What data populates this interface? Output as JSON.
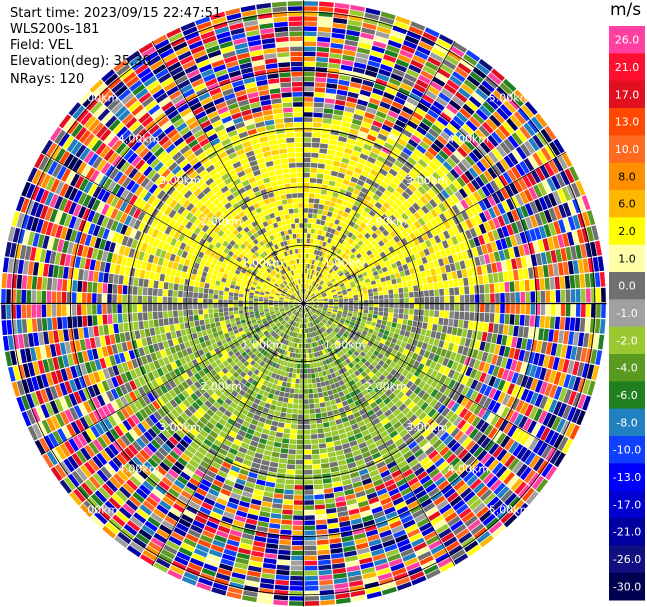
{
  "header": {
    "start_time": "Start time: 2023/09/15 22:47:51",
    "instrument": "WLS200s-181",
    "field": "Field: VEL",
    "elevation": "Elevation(deg): 35.30",
    "nrays": "NRays: 120"
  },
  "chart_data": {
    "type": "heatmap",
    "title": "",
    "projection": "polar PPI (plan position indicator)",
    "field": "VEL",
    "units": "m/s",
    "nrays": 120,
    "elevation_deg": 35.3,
    "range_rings_km": [
      1.0,
      2.0,
      3.0,
      4.0,
      5.0
    ],
    "max_range_km": 5.2,
    "ring_labels": [
      {
        "text": "1.00km",
        "ring": 1.0,
        "quadrants": [
          "NE",
          "SE",
          "SW",
          "NW"
        ]
      },
      {
        "text": "2.00km",
        "ring": 2.0,
        "quadrants": [
          "NE",
          "SE",
          "SW",
          "NW"
        ]
      },
      {
        "text": "3.00km",
        "ring": 3.0,
        "quadrants": [
          "NE",
          "SE",
          "SW",
          "NW"
        ]
      },
      {
        "text": "4.00km",
        "ring": 4.0,
        "quadrants": [
          "NE",
          "SE",
          "SW",
          "NW"
        ]
      },
      {
        "text": "5.00km",
        "ring": 5.0,
        "quadrants": [
          "NE",
          "SE",
          "SW",
          "NW"
        ]
      }
    ],
    "colorbar": {
      "label": "m/s",
      "ticks": [
        "26.0",
        "21.0",
        "17.0",
        "13.0",
        "10.0",
        "8.0",
        "6.0",
        "2.0",
        "1.0",
        "0.0",
        "-1.0",
        "-2.0",
        "-4.0",
        "-6.0",
        "-8.0",
        "-10.0",
        "-13.0",
        "-17.0",
        "-21.0",
        "-26.0",
        "-30.0"
      ],
      "colors": [
        "#ff40a0",
        "#ff1030",
        "#e01020",
        "#ff4800",
        "#ff6a20",
        "#ff9000",
        "#ffb800",
        "#ffff00",
        "#ffffa8",
        "#707070",
        "#a0a0a0",
        "#9ac830",
        "#5a9a20",
        "#208020",
        "#2080c0",
        "#1040ff",
        "#0000ff",
        "#0000d0",
        "#0000a0",
        "#101080",
        "#000050"
      ]
    },
    "grid": true,
    "legend_position": "right"
  }
}
